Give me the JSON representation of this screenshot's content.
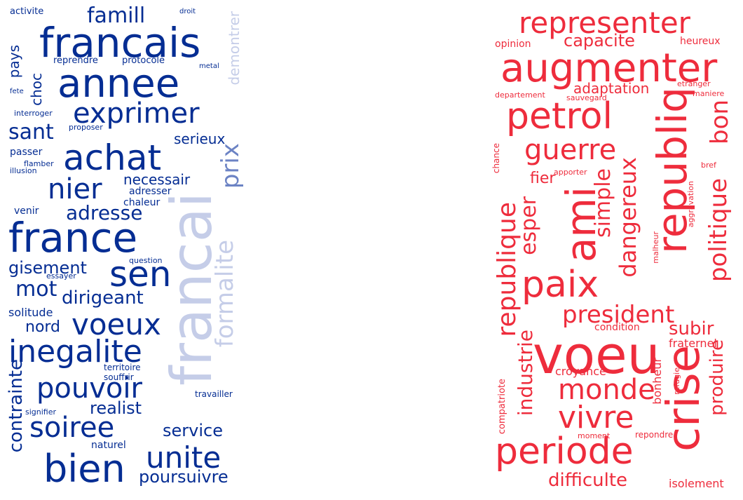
{
  "left_cloud": {
    "color_primary": "#052d93",
    "color_mid": "#6c83c4",
    "color_light": "#c5cde8",
    "words": [
      {
        "text": "activite",
        "size": 13,
        "shade": "primary"
      },
      {
        "text": "droit",
        "size": 10,
        "shade": "primary"
      },
      {
        "text": "famill",
        "size": 30,
        "shade": "primary"
      },
      {
        "text": "francais",
        "size": 58,
        "shade": "primary"
      },
      {
        "text": "demontrer",
        "size": 20,
        "shade": "light"
      },
      {
        "text": "pays",
        "size": 20,
        "shade": "primary"
      },
      {
        "text": "reprendre",
        "size": 13,
        "shade": "primary"
      },
      {
        "text": "protocole",
        "size": 13,
        "shade": "primary"
      },
      {
        "text": "metal",
        "size": 10,
        "shade": "primary"
      },
      {
        "text": "choc",
        "size": 20,
        "shade": "primary"
      },
      {
        "text": "annee",
        "size": 56,
        "shade": "primary"
      },
      {
        "text": "fete",
        "size": 10,
        "shade": "primary"
      },
      {
        "text": "interroger",
        "size": 11,
        "shade": "primary"
      },
      {
        "text": "exprimer",
        "size": 40,
        "shade": "primary"
      },
      {
        "text": "proposer",
        "size": 11,
        "shade": "primary"
      },
      {
        "text": "sant",
        "size": 30,
        "shade": "primary"
      },
      {
        "text": "serieux",
        "size": 20,
        "shade": "primary"
      },
      {
        "text": "passer",
        "size": 14,
        "shade": "primary"
      },
      {
        "text": "achat",
        "size": 50,
        "shade": "primary"
      },
      {
        "text": "flamber",
        "size": 11,
        "shade": "primary"
      },
      {
        "text": "illusion",
        "size": 11,
        "shade": "primary"
      },
      {
        "text": "prix",
        "size": 34,
        "shade": "mid"
      },
      {
        "text": "necessair",
        "size": 20,
        "shade": "primary"
      },
      {
        "text": "nier",
        "size": 40,
        "shade": "primary"
      },
      {
        "text": "adresser",
        "size": 14,
        "shade": "primary"
      },
      {
        "text": "chaleur",
        "size": 14,
        "shade": "primary"
      },
      {
        "text": "venir",
        "size": 14,
        "shade": "primary"
      },
      {
        "text": "adresse",
        "size": 28,
        "shade": "primary"
      },
      {
        "text": "francai",
        "size": 80,
        "shade": "light"
      },
      {
        "text": "france",
        "size": 58,
        "shade": "primary"
      },
      {
        "text": "formalite",
        "size": 34,
        "shade": "light"
      },
      {
        "text": "question",
        "size": 11,
        "shade": "primary"
      },
      {
        "text": "gisement",
        "size": 24,
        "shade": "primary"
      },
      {
        "text": "essayer",
        "size": 11,
        "shade": "primary"
      },
      {
        "text": "sen",
        "size": 50,
        "shade": "primary"
      },
      {
        "text": "mot",
        "size": 30,
        "shade": "primary"
      },
      {
        "text": "dirigeant",
        "size": 26,
        "shade": "primary"
      },
      {
        "text": "solitude",
        "size": 16,
        "shade": "primary"
      },
      {
        "text": "nord",
        "size": 22,
        "shade": "primary"
      },
      {
        "text": "voeux",
        "size": 42,
        "shade": "primary"
      },
      {
        "text": "inegalite",
        "size": 44,
        "shade": "primary"
      },
      {
        "text": "territoire",
        "size": 12,
        "shade": "primary"
      },
      {
        "text": "souffrir",
        "size": 12,
        "shade": "primary"
      },
      {
        "text": "contrainte",
        "size": 26,
        "shade": "primary"
      },
      {
        "text": "pouvoir",
        "size": 40,
        "shade": "primary"
      },
      {
        "text": "travailler",
        "size": 12,
        "shade": "primary"
      },
      {
        "text": "realist",
        "size": 24,
        "shade": "primary"
      },
      {
        "text": "signifier",
        "size": 11,
        "shade": "primary"
      },
      {
        "text": "soiree",
        "size": 40,
        "shade": "primary"
      },
      {
        "text": "service",
        "size": 24,
        "shade": "primary"
      },
      {
        "text": "naturel",
        "size": 14,
        "shade": "primary"
      },
      {
        "text": "bien",
        "size": 54,
        "shade": "primary"
      },
      {
        "text": "unite",
        "size": 42,
        "shade": "primary"
      },
      {
        "text": "poursuivre",
        "size": 24,
        "shade": "primary"
      }
    ]
  },
  "right_cloud": {
    "color_primary": "#ee2c3c",
    "words": [
      {
        "text": "representer",
        "size": 42,
        "shade": "primary"
      },
      {
        "text": "opinion",
        "size": 14,
        "shade": "primary"
      },
      {
        "text": "capacite",
        "size": 24,
        "shade": "primary"
      },
      {
        "text": "heureux",
        "size": 14,
        "shade": "primary"
      },
      {
        "text": "augmenter",
        "size": 56,
        "shade": "primary"
      },
      {
        "text": "departement",
        "size": 11,
        "shade": "primary"
      },
      {
        "text": "adaptation",
        "size": 20,
        "shade": "primary"
      },
      {
        "text": "etranger",
        "size": 11,
        "shade": "primary"
      },
      {
        "text": "sauvegard",
        "size": 11,
        "shade": "primary"
      },
      {
        "text": "maniere",
        "size": 11,
        "shade": "primary"
      },
      {
        "text": "petrol",
        "size": 52,
        "shade": "primary"
      },
      {
        "text": "republiq",
        "size": 58,
        "shade": "primary"
      },
      {
        "text": "bon",
        "size": 34,
        "shade": "primary"
      },
      {
        "text": "guerre",
        "size": 40,
        "shade": "primary"
      },
      {
        "text": "chance",
        "size": 12,
        "shade": "primary"
      },
      {
        "text": "apporter",
        "size": 11,
        "shade": "primary"
      },
      {
        "text": "bref",
        "size": 11,
        "shade": "primary"
      },
      {
        "text": "fier",
        "size": 22,
        "shade": "primary"
      },
      {
        "text": "dangereux",
        "size": 32,
        "shade": "primary"
      },
      {
        "text": "simple",
        "size": 30,
        "shade": "primary"
      },
      {
        "text": "politique",
        "size": 34,
        "shade": "primary"
      },
      {
        "text": "ami",
        "size": 58,
        "shade": "primary"
      },
      {
        "text": "esper",
        "size": 30,
        "shade": "primary"
      },
      {
        "text": "republique",
        "size": 36,
        "shade": "primary"
      },
      {
        "text": "aggravation",
        "size": 11,
        "shade": "primary"
      },
      {
        "text": "malheur",
        "size": 11,
        "shade": "primary"
      },
      {
        "text": "paix",
        "size": 52,
        "shade": "primary"
      },
      {
        "text": "president",
        "size": 34,
        "shade": "primary"
      },
      {
        "text": "condition",
        "size": 14,
        "shade": "primary"
      },
      {
        "text": "subir",
        "size": 26,
        "shade": "primary"
      },
      {
        "text": "industrie",
        "size": 28,
        "shade": "primary"
      },
      {
        "text": "voeu",
        "size": 74,
        "shade": "primary"
      },
      {
        "text": "fraternel",
        "size": 16,
        "shade": "primary"
      },
      {
        "text": "crise",
        "size": 64,
        "shade": "primary"
      },
      {
        "text": "croyance",
        "size": 16,
        "shade": "primary"
      },
      {
        "text": "produire",
        "size": 26,
        "shade": "primary"
      },
      {
        "text": "bonheur",
        "size": 16,
        "shade": "primary"
      },
      {
        "text": "refugie",
        "size": 11,
        "shade": "primary"
      },
      {
        "text": "monde",
        "size": 40,
        "shade": "primary"
      },
      {
        "text": "compatriote",
        "size": 13,
        "shade": "primary"
      },
      {
        "text": "vivre",
        "size": 44,
        "shade": "primary"
      },
      {
        "text": "moment",
        "size": 11,
        "shade": "primary"
      },
      {
        "text": "repondre",
        "size": 12,
        "shade": "primary"
      },
      {
        "text": "periode",
        "size": 52,
        "shade": "primary"
      },
      {
        "text": "difficulte",
        "size": 26,
        "shade": "primary"
      },
      {
        "text": "isolement",
        "size": 16,
        "shade": "primary"
      }
    ]
  }
}
